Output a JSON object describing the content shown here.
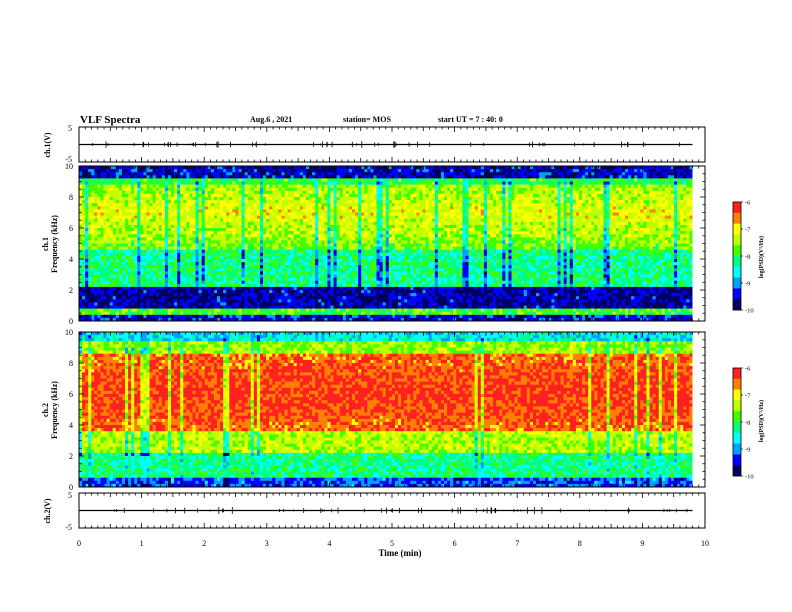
{
  "header": {
    "title": "VLF Spectra",
    "date": "Aug.6 , 2021",
    "station": "station= MOS",
    "start": "start UT = 7 : 40: 0"
  },
  "chart_data": [
    {
      "type": "line",
      "panel": "waveform-1",
      "ylabel": "ch.1(V)",
      "ylim": [
        -5,
        5
      ],
      "yticks": [
        "5",
        "-5"
      ],
      "xlim": [
        0,
        10
      ],
      "series": [
        {
          "x": [
            0,
            9.8
          ],
          "values": [
            0,
            0
          ]
        }
      ]
    },
    {
      "type": "heatmap",
      "panel": "spectrogram-1",
      "ylabel": "Frequency (kHz)",
      "channel_label": "ch.1",
      "ylim": [
        0,
        10
      ],
      "yticks": [
        "0",
        "2",
        "4",
        "6",
        "8",
        "10"
      ],
      "xlim": [
        0,
        10
      ],
      "data_end_min": 9.8,
      "colorbar": {
        "label": "log(PSD)(V²/Hz)",
        "ticks": [
          "-6",
          "-7",
          "-8",
          "-9",
          "-10"
        ],
        "range": [
          -10,
          -6
        ]
      }
    },
    {
      "type": "heatmap",
      "panel": "spectrogram-2",
      "ylabel": "Frequency (kHz)",
      "channel_label": "ch.2",
      "ylim": [
        0,
        10
      ],
      "yticks": [
        "0",
        "2",
        "4",
        "6",
        "8",
        "10"
      ],
      "xlim": [
        0,
        10
      ],
      "data_end_min": 9.8,
      "colorbar": {
        "label": "log(PSD)(V²/Hz)",
        "ticks": [
          "-6",
          "-7",
          "-8",
          "-9",
          "-10"
        ],
        "range": [
          -10,
          -6
        ]
      }
    },
    {
      "type": "line",
      "panel": "waveform-2",
      "ylabel": "ch.2(V)",
      "ylim": [
        -5,
        5
      ],
      "yticks": [
        "5",
        "-5"
      ],
      "xlim": [
        0,
        10
      ],
      "xlabel": "Time (min)",
      "xticks": [
        "0",
        "1",
        "2",
        "3",
        "4",
        "5",
        "6",
        "7",
        "8",
        "9",
        "10"
      ],
      "series": [
        {
          "x": [
            0,
            9.8
          ],
          "values": [
            0,
            0
          ]
        }
      ]
    }
  ],
  "colors": {
    "colormap": [
      "#000060",
      "#0000ff",
      "#00a0ff",
      "#00ffff",
      "#00ff80",
      "#40ff00",
      "#c0ff00",
      "#ffff00",
      "#ff8000",
      "#ff2020",
      "#ffffff"
    ],
    "axis": "#000000",
    "background": "#ffffff"
  }
}
